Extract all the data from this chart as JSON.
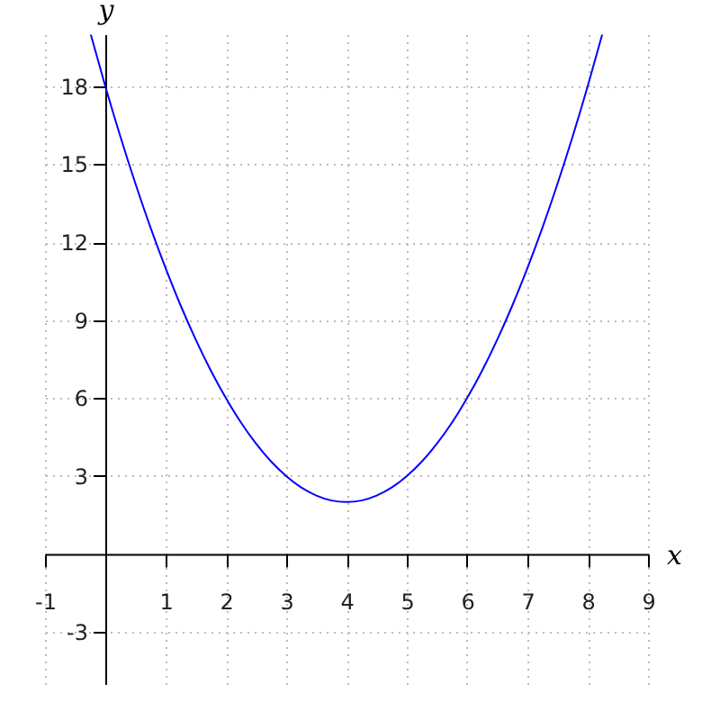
{
  "chart_data": {
    "type": "line",
    "xlabel": "x",
    "ylabel": "y",
    "x": [
      -0.24,
      0,
      0.25,
      0.5,
      0.75,
      1,
      1.25,
      1.5,
      1.75,
      2,
      2.25,
      2.5,
      2.75,
      3,
      3.25,
      3.5,
      3.75,
      4,
      4.25,
      4.5,
      4.75,
      5,
      5.25,
      5.5,
      5.75,
      6,
      6.25,
      6.5,
      6.75,
      7,
      7.25,
      7.5,
      7.75,
      8,
      8.24
    ],
    "series": [
      {
        "color": "#0000ff",
        "values": [
          19.98,
          18,
          16.06,
          14.25,
          12.56,
          11,
          9.56,
          8.25,
          7.06,
          6,
          5.06,
          4.25,
          3.56,
          3,
          2.56,
          2.25,
          2.06,
          2,
          2.06,
          2.25,
          2.56,
          3,
          3.56,
          4.25,
          5.06,
          6,
          7.06,
          8.25,
          9.56,
          11,
          12.56,
          14.25,
          16.06,
          18,
          19.98
        ]
      }
    ],
    "xlim": [
      -1,
      9
    ],
    "ylim": [
      -5,
      20
    ],
    "xticks": [
      -1,
      1,
      2,
      3,
      4,
      5,
      6,
      7,
      8,
      9
    ],
    "yticks": [
      -3,
      3,
      6,
      9,
      12,
      15,
      18
    ],
    "grid": true,
    "line_style": "solid"
  }
}
